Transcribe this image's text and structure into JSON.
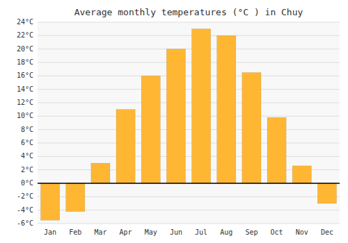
{
  "chart_data": {
    "type": "bar",
    "title": "Average monthly temperatures (°C ) in Chuy",
    "categories": [
      "Jan",
      "Feb",
      "Mar",
      "Apr",
      "May",
      "Jun",
      "Jul",
      "Aug",
      "Sep",
      "Oct",
      "Nov",
      "Dec"
    ],
    "values": [
      -5.5,
      -4.2,
      3.0,
      11.0,
      16.0,
      20.0,
      23.0,
      22.0,
      16.5,
      9.8,
      2.6,
      -3.0
    ],
    "color": "#FFB733",
    "ylim": [
      -6,
      24
    ],
    "yticks": [
      {
        "value": -6,
        "label": "-6°C"
      },
      {
        "value": -4,
        "label": "-4°C"
      },
      {
        "value": -2,
        "label": "-2°C"
      },
      {
        "value": 0,
        "label": "0°C"
      },
      {
        "value": 2,
        "label": "2°C"
      },
      {
        "value": 4,
        "label": "4°C"
      },
      {
        "value": 6,
        "label": "6°C"
      },
      {
        "value": 8,
        "label": "8°C"
      },
      {
        "value": 10,
        "label": "10°C"
      },
      {
        "value": 12,
        "label": "12°C"
      },
      {
        "value": 14,
        "label": "14°C"
      },
      {
        "value": 16,
        "label": "16°C"
      },
      {
        "value": 18,
        "label": "18°C"
      },
      {
        "value": 20,
        "label": "20°C"
      },
      {
        "value": 22,
        "label": "22°C"
      },
      {
        "value": 24,
        "label": "24°C"
      }
    ],
    "grid": true
  }
}
